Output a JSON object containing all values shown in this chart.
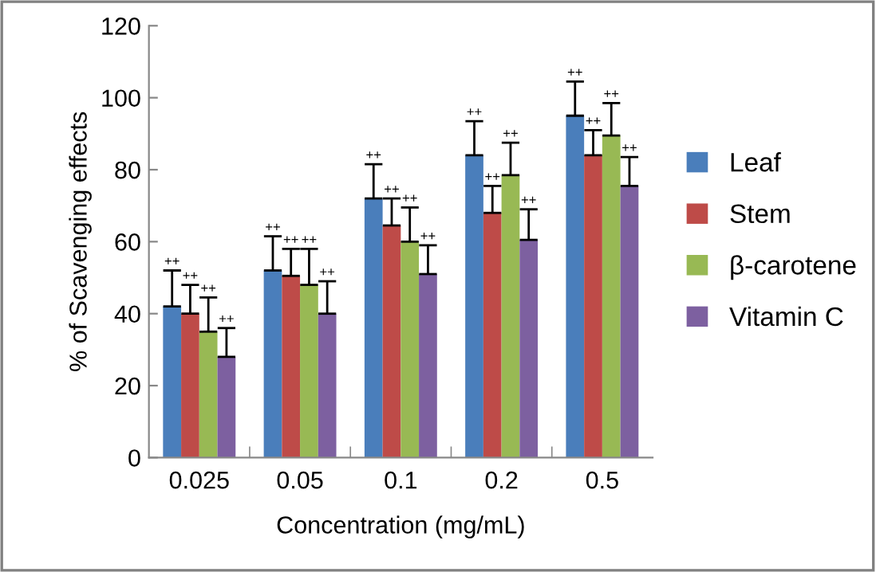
{
  "chart_data": {
    "type": "bar",
    "xlabel": "Concentration (mg/mL)",
    "ylabel": "% of Scavenging effects",
    "categories": [
      "0.025",
      "0.05",
      "0.1",
      "0.2",
      "0.5"
    ],
    "series": [
      {
        "name": "Leaf",
        "color": "#4a7ebb",
        "values": [
          42,
          52,
          72,
          84,
          95
        ],
        "errors": [
          [
            42,
            52
          ],
          [
            52,
            61.5
          ],
          [
            72,
            81.5
          ],
          [
            84,
            93.5
          ],
          [
            95,
            104.5
          ]
        ]
      },
      {
        "name": "Stem",
        "color": "#be4b48",
        "values": [
          40,
          50.5,
          64.5,
          68,
          84
        ],
        "errors": [
          [
            40,
            48
          ],
          [
            50.5,
            58
          ],
          [
            64.5,
            72
          ],
          [
            68,
            75.5
          ],
          [
            84,
            91
          ]
        ]
      },
      {
        "name": "β-carotene",
        "color": "#98b954",
        "values": [
          35,
          48,
          60,
          78.5,
          89.5
        ],
        "errors": [
          [
            35,
            44.5
          ],
          [
            48,
            58
          ],
          [
            60,
            69.5
          ],
          [
            78.5,
            87.5
          ],
          [
            89.5,
            98.5
          ]
        ]
      },
      {
        "name": "Vitamin C",
        "color": "#7d60a0",
        "values": [
          28,
          40,
          51,
          60.5,
          75.5
        ],
        "errors": [
          [
            28,
            36
          ],
          [
            40,
            49
          ],
          [
            51,
            59
          ],
          [
            60.5,
            69
          ],
          [
            75.5,
            83.5
          ]
        ]
      }
    ],
    "annotations": [
      "++",
      "++",
      "++",
      "++",
      "++",
      "++",
      "++",
      "++",
      "++",
      "++",
      "++",
      "++",
      "++",
      "++",
      "++",
      "++",
      "++",
      "++",
      "++",
      "++"
    ],
    "ylim": [
      0,
      120
    ],
    "yticks": [
      0,
      20,
      40,
      60,
      80,
      100,
      120
    ],
    "grid": false,
    "legend": "right"
  }
}
